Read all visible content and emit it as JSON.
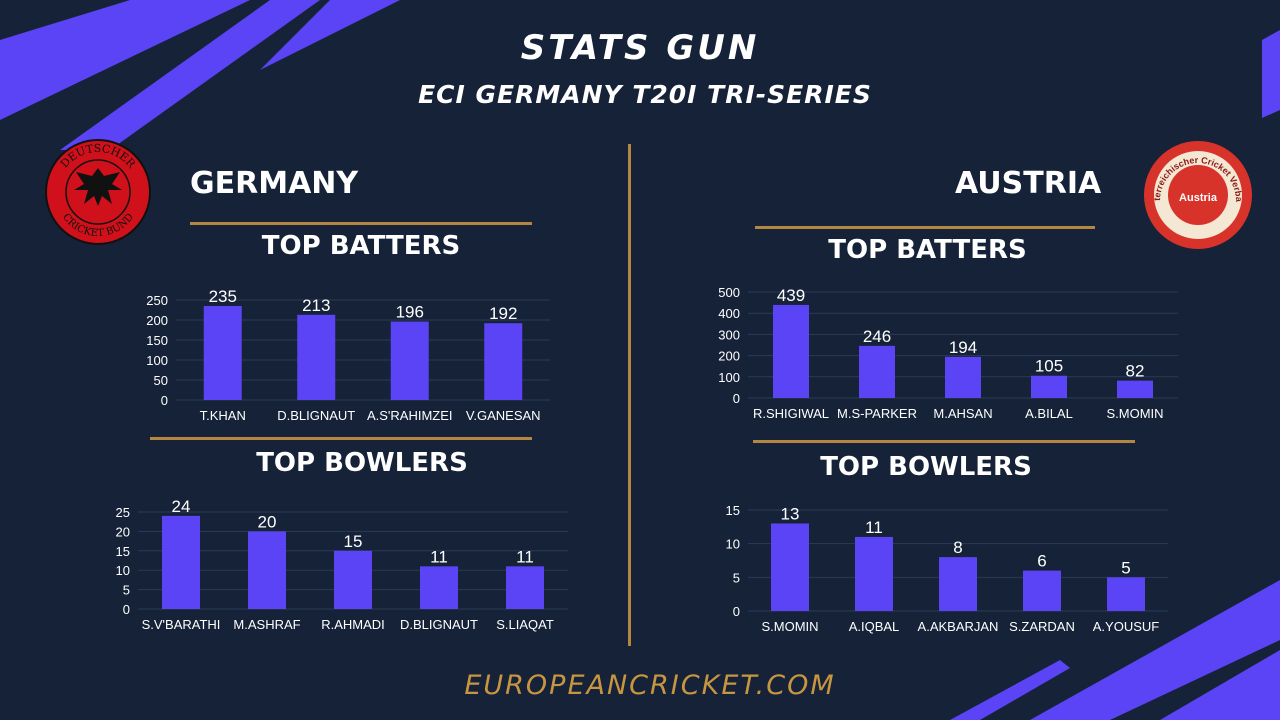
{
  "header": {
    "title": "STATS GUN",
    "subtitle": "ECI GERMANY T20I TRI-SERIES"
  },
  "colors": {
    "background": "#152238",
    "bar": "#5a44f5",
    "accent_rule": "#b3873f",
    "footer": "#c89540"
  },
  "teams": [
    {
      "name": "GERMANY",
      "logo_text": [
        "DEUTSCHER",
        "CRICKET BUND"
      ],
      "batters_title": "TOP BATTERS",
      "bowlers_title": "TOP BOWLERS"
    },
    {
      "name": "AUSTRIA",
      "logo_text": [
        "Österreichischer Cricket Verband",
        "Austria"
      ],
      "batters_title": "TOP BATTERS",
      "bowlers_title": "TOP BOWLERS"
    }
  ],
  "footer": "EUROPEANCRICKET.COM",
  "chart_data": [
    {
      "id": "germany-batters",
      "type": "bar",
      "title": "TOP BATTERS",
      "categories": [
        "T.KHAN",
        "D.BLIGNAUT",
        "A.S'RAHIMZEI",
        "V.GANESAN"
      ],
      "values": [
        235,
        213,
        196,
        192
      ],
      "ylim": [
        0,
        250
      ],
      "yticks": [
        0,
        50,
        100,
        150,
        200,
        250
      ],
      "grid": true
    },
    {
      "id": "germany-bowlers",
      "type": "bar",
      "title": "TOP BOWLERS",
      "categories": [
        "S.V'BARATHI",
        "M.ASHRAF",
        "R.AHMADI",
        "D.BLIGNAUT",
        "S.LIAQAT"
      ],
      "values": [
        24,
        20,
        15,
        11,
        11
      ],
      "ylim": [
        0,
        25
      ],
      "yticks": [
        0,
        5,
        10,
        15,
        20,
        25
      ],
      "grid": true
    },
    {
      "id": "austria-batters",
      "type": "bar",
      "title": "TOP BATTERS",
      "categories": [
        "R.SHIGIWAL",
        "M.S-PARKER",
        "M.AHSAN",
        "A.BILAL",
        "S.MOMIN"
      ],
      "values": [
        439,
        246,
        194,
        105,
        82
      ],
      "ylim": [
        0,
        500
      ],
      "yticks": [
        0,
        100,
        200,
        300,
        400,
        500
      ],
      "grid": true
    },
    {
      "id": "austria-bowlers",
      "type": "bar",
      "title": "TOP BOWLERS",
      "categories": [
        "S.MOMIN",
        "A.IQBAL",
        "A.AKBARJAN",
        "S.ZARDAN",
        "A.YOUSUF"
      ],
      "values": [
        13,
        11,
        8,
        6,
        5
      ],
      "ylim": [
        0,
        15
      ],
      "yticks": [
        0,
        5,
        10,
        15
      ],
      "grid": true
    }
  ]
}
